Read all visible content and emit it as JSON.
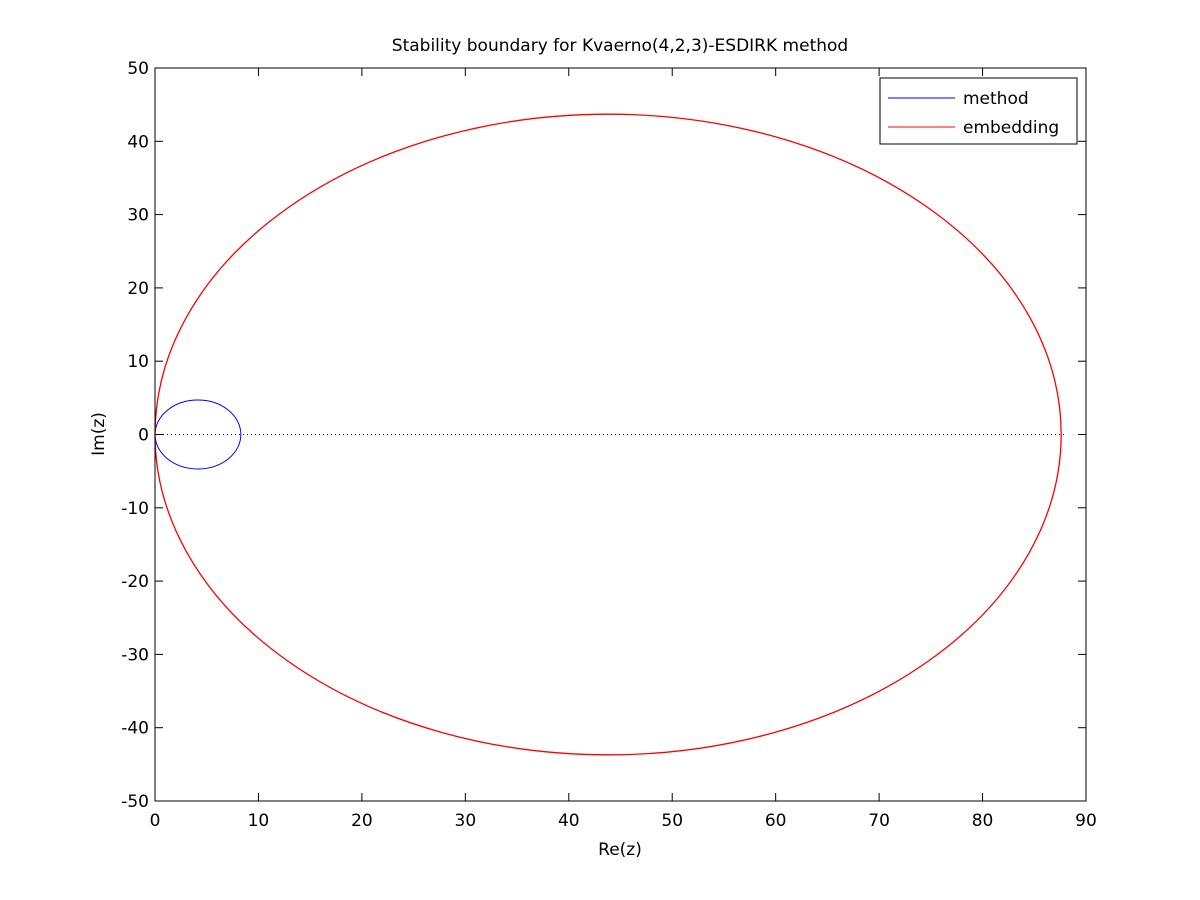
{
  "chart_data": {
    "type": "line",
    "title": "Stability boundary for Kvaerno(4,2,3)-ESDIRK method",
    "xlabel": "Re(z)",
    "ylabel": "Im(z)",
    "xlim": [
      0,
      90
    ],
    "ylim": [
      -50,
      50
    ],
    "xticks": [
      0,
      10,
      20,
      30,
      40,
      50,
      60,
      70,
      80,
      90
    ],
    "yticks": [
      -50,
      -40,
      -30,
      -20,
      -10,
      0,
      10,
      20,
      30,
      40,
      50
    ],
    "grid": false,
    "legend_position": "top-right",
    "series": [
      {
        "name": "method",
        "color": "#0000ff",
        "shape": "closed-curve",
        "center": [
          4.15,
          0
        ],
        "semi_axis_x": 4.15,
        "semi_axis_y": 4.7,
        "points": [
          [
            0,
            0
          ],
          [
            0.56,
            2.35
          ],
          [
            2.08,
            4.07
          ],
          [
            4.15,
            4.7
          ],
          [
            6.23,
            4.07
          ],
          [
            7.74,
            2.35
          ],
          [
            8.3,
            0
          ],
          [
            7.74,
            -2.35
          ],
          [
            6.23,
            -4.07
          ],
          [
            4.15,
            -4.7
          ],
          [
            2.08,
            -4.07
          ],
          [
            0.56,
            -2.35
          ],
          [
            0,
            0
          ]
        ]
      },
      {
        "name": "embedding",
        "color": "#ff0000",
        "shape": "closed-curve",
        "center": [
          43.8,
          0
        ],
        "semi_axis_x": 43.8,
        "semi_axis_y": 43.7,
        "points": [
          [
            0,
            0
          ],
          [
            5.87,
            21.85
          ],
          [
            21.9,
            37.85
          ],
          [
            43.8,
            43.7
          ],
          [
            65.7,
            37.85
          ],
          [
            81.73,
            21.85
          ],
          [
            87.6,
            0
          ],
          [
            81.73,
            -21.85
          ],
          [
            65.7,
            -37.85
          ],
          [
            43.8,
            -43.7
          ],
          [
            21.9,
            -37.85
          ],
          [
            5.87,
            -21.85
          ],
          [
            0,
            0
          ]
        ]
      },
      {
        "name": "",
        "color": "#0000ff",
        "style": "dotted",
        "points": [
          [
            0,
            0
          ],
          [
            88,
            0
          ]
        ]
      }
    ]
  }
}
